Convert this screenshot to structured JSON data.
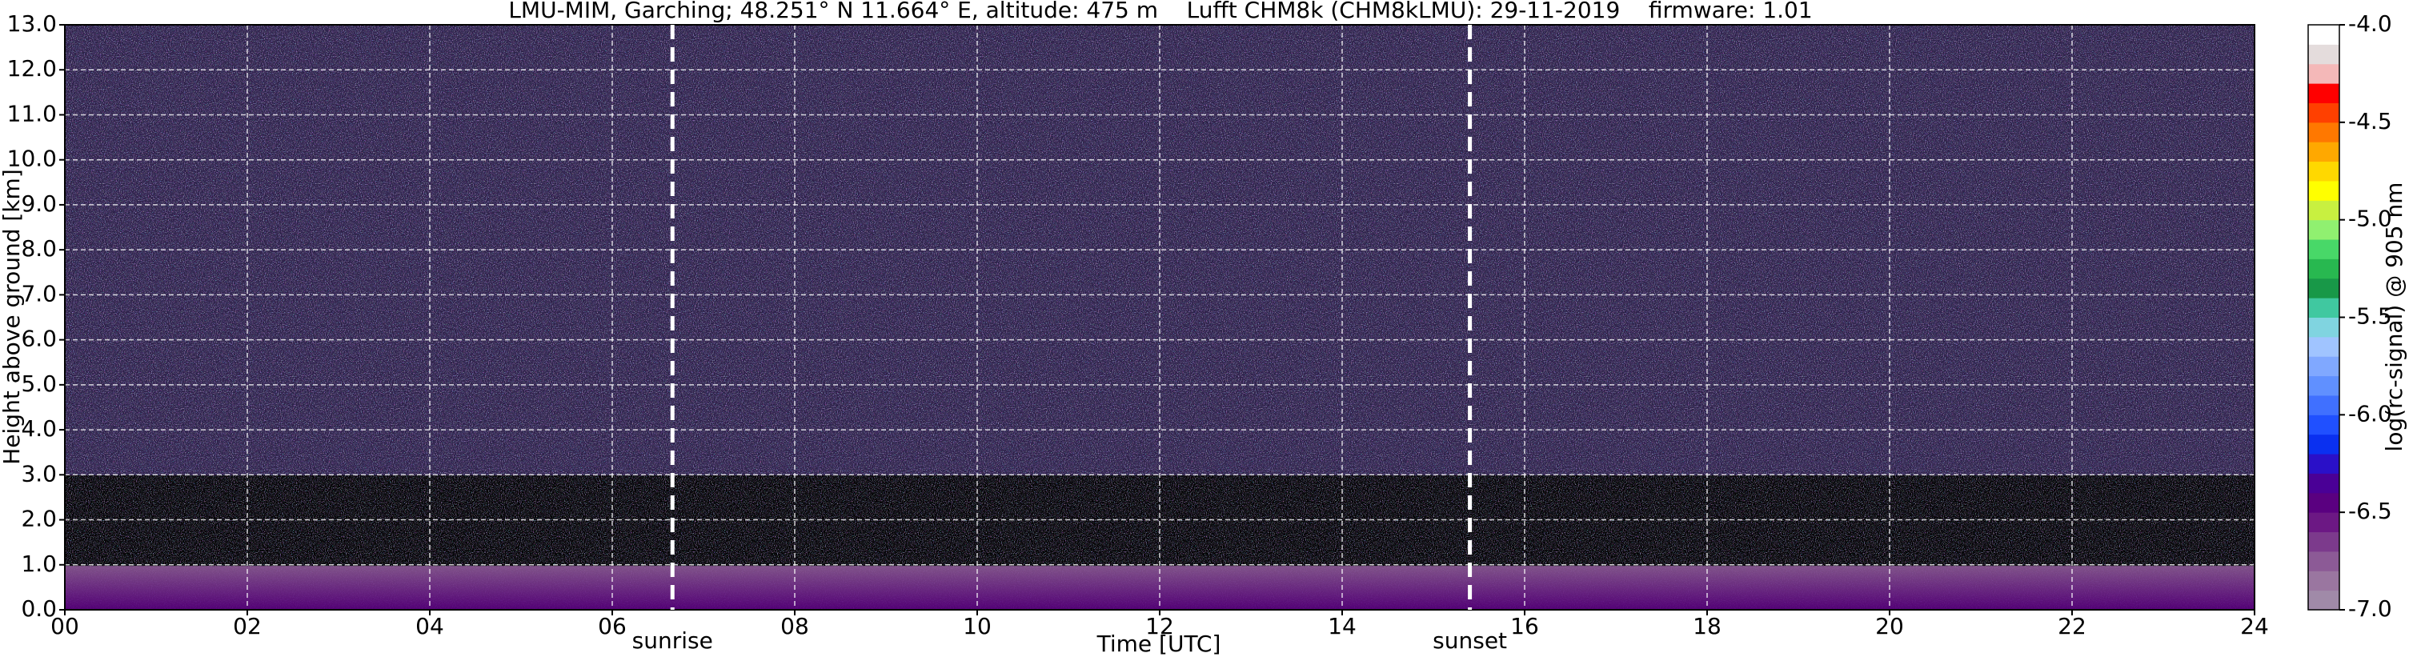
{
  "chart_data": {
    "type": "heatmap",
    "title": "LMU-MIM, Garching; 48.251° N 11.664° E, altitude: 475 m    Lufft CHM8k (CHM8kLMU): 29-11-2019    firmware: 1.01",
    "xlabel": "Time [UTC]",
    "ylabel": "Height above ground [km]",
    "xlim": [
      0,
      24
    ],
    "xticks": [
      {
        "value": 0,
        "label": "00"
      },
      {
        "value": 2,
        "label": "02"
      },
      {
        "value": 4,
        "label": "04"
      },
      {
        "value": 6,
        "label": "06"
      },
      {
        "value": 8,
        "label": "08"
      },
      10,
      12,
      14,
      16,
      18,
      20,
      22,
      24
    ],
    "ylim": [
      0,
      13
    ],
    "yticks": [
      {
        "value": 0,
        "label": "0.0"
      },
      {
        "value": 1,
        "label": "1.0"
      },
      {
        "value": 2,
        "label": "2.0"
      },
      {
        "value": 3,
        "label": "3.0"
      },
      {
        "value": 4,
        "label": "4.0"
      },
      {
        "value": 5,
        "label": "5.0"
      },
      {
        "value": 6,
        "label": "6.0"
      },
      {
        "value": 7,
        "label": "7.0"
      },
      {
        "value": 8,
        "label": "8.0"
      },
      {
        "value": 9,
        "label": "9.0"
      },
      {
        "value": 10,
        "label": "10.0"
      },
      {
        "value": 11,
        "label": "11.0"
      },
      {
        "value": 12,
        "label": "12.0"
      },
      {
        "value": 13,
        "label": "13.0"
      }
    ],
    "grid": true,
    "events": [
      {
        "label": "sunrise",
        "x": 6.66
      },
      {
        "label": "sunset",
        "x": 15.4
      }
    ],
    "colorbar": {
      "label": "log(rc-signal) @ 905 nm",
      "lim": [
        -7,
        -4
      ],
      "ticks": [
        {
          "value": -7,
          "label": "-7.0"
        },
        {
          "value": -6.5,
          "label": "-6.5"
        },
        {
          "value": -6,
          "label": "-6.0"
        },
        {
          "value": -5.5,
          "label": "-5.5"
        },
        {
          "value": -5,
          "label": "-5.0"
        },
        {
          "value": -4.5,
          "label": "-4.5"
        },
        {
          "value": -4,
          "label": "-4.0"
        }
      ],
      "colors": [
        "#a08aa8",
        "#9a76a0",
        "#8c5a96",
        "#7c3a8c",
        "#6c1884",
        "#5a0080",
        "#4a0096",
        "#2a10c8",
        "#0a30f0",
        "#2050ff",
        "#4070ff",
        "#6090ff",
        "#80a8ff",
        "#a0c4ff",
        "#80d4e0",
        "#40c8a0",
        "#189848",
        "#28b850",
        "#48d868",
        "#90f070",
        "#c8f040",
        "#ffff00",
        "#ffd800",
        "#ffa800",
        "#ff7800",
        "#ff4000",
        "#ff0000",
        "#f4b8b8",
        "#e4dcdc",
        "#ffffff"
      ]
    }
  }
}
